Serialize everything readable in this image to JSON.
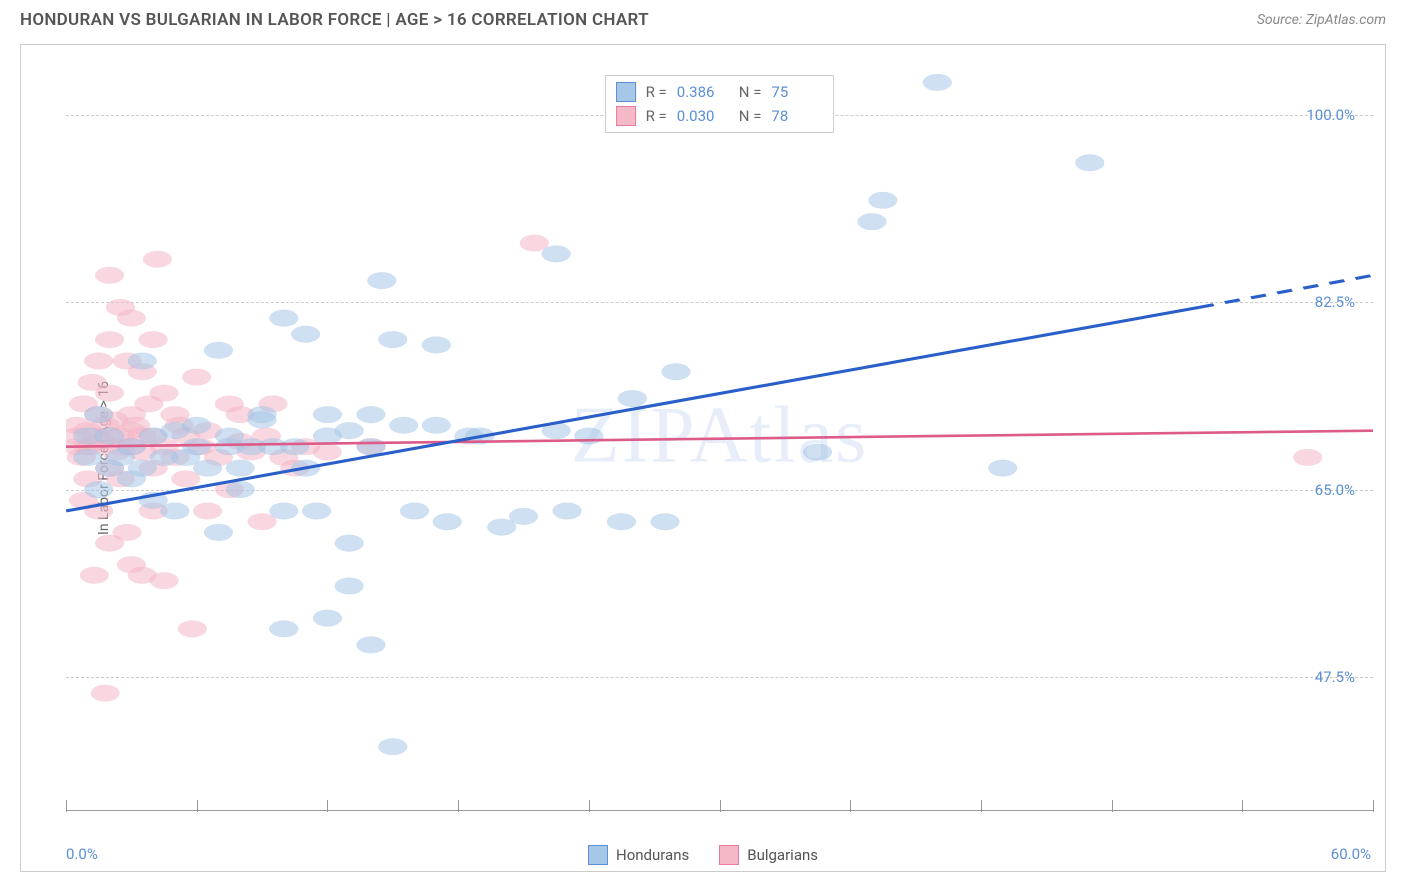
{
  "header": {
    "title": "HONDURAN VS BULGARIAN IN LABOR FORCE | AGE > 16 CORRELATION CHART",
    "source": "Source: ZipAtlas.com"
  },
  "chart": {
    "type": "scatter",
    "y_axis_label": "In Labor Force | Age > 16",
    "x_range": [
      0,
      60
    ],
    "y_range": [
      35,
      105
    ],
    "y_ticks": [
      {
        "value": 47.5,
        "label": "47.5%"
      },
      {
        "value": 65.0,
        "label": "65.0%"
      },
      {
        "value": 82.5,
        "label": "82.5%"
      },
      {
        "value": 100.0,
        "label": "100.0%"
      }
    ],
    "x_tick_positions": [
      0,
      6,
      12,
      18,
      24,
      30,
      36,
      42,
      48,
      54,
      60
    ],
    "x_start_label": "0.0%",
    "x_end_label": "60.0%",
    "grid_color": "#cccccc",
    "background_color": "#ffffff",
    "marker_radius": 8.5,
    "marker_opacity": 0.55,
    "series": [
      {
        "name": "Hondurans",
        "color_fill": "#a7c7e7",
        "color_stroke": "#5b8fd6",
        "r": "0.386",
        "n": "75",
        "trend_line": {
          "x1": 0,
          "y1": 63,
          "x2": 52,
          "y2": 82,
          "x2_dash": 60,
          "y2_dash": 85,
          "stroke": "#2a5fc9",
          "width": 2.5
        },
        "points": [
          [
            1,
            70
          ],
          [
            1,
            68
          ],
          [
            1.5,
            65
          ],
          [
            1.5,
            72
          ],
          [
            2,
            67
          ],
          [
            2,
            70
          ],
          [
            2.5,
            68
          ],
          [
            3,
            69
          ],
          [
            3,
            66
          ],
          [
            3.5,
            77
          ],
          [
            3.5,
            67
          ],
          [
            4,
            70
          ],
          [
            4,
            64
          ],
          [
            4.5,
            68
          ],
          [
            5,
            70.5
          ],
          [
            5,
            63
          ],
          [
            5.5,
            68
          ],
          [
            6,
            69
          ],
          [
            6,
            71
          ],
          [
            6.5,
            67
          ],
          [
            7,
            61
          ],
          [
            7,
            78
          ],
          [
            7.5,
            70
          ],
          [
            7.5,
            69
          ],
          [
            8,
            65
          ],
          [
            8,
            67
          ],
          [
            8.5,
            69
          ],
          [
            9,
            72
          ],
          [
            9,
            71.5
          ],
          [
            9.5,
            69
          ],
          [
            10,
            81
          ],
          [
            10,
            63
          ],
          [
            10,
            52
          ],
          [
            10.5,
            69
          ],
          [
            11,
            79.5
          ],
          [
            11,
            67
          ],
          [
            11.5,
            63
          ],
          [
            12,
            70
          ],
          [
            12,
            72
          ],
          [
            12,
            53
          ],
          [
            13,
            60
          ],
          [
            13,
            70.5
          ],
          [
            13,
            56
          ],
          [
            14,
            72
          ],
          [
            14,
            69
          ],
          [
            14,
            50.5
          ],
          [
            14.5,
            84.5
          ],
          [
            15,
            79
          ],
          [
            15,
            41
          ],
          [
            15.5,
            71
          ],
          [
            16,
            63
          ],
          [
            17,
            78.5
          ],
          [
            17,
            71
          ],
          [
            17.5,
            62
          ],
          [
            18.5,
            70
          ],
          [
            19,
            70
          ],
          [
            20,
            61.5
          ],
          [
            21,
            62.5
          ],
          [
            22.5,
            87
          ],
          [
            22.5,
            70.5
          ],
          [
            23,
            63
          ],
          [
            24,
            70
          ],
          [
            25.5,
            62
          ],
          [
            26,
            73.5
          ],
          [
            27.5,
            62
          ],
          [
            28,
            76
          ],
          [
            34.5,
            68.5
          ],
          [
            37,
            90
          ],
          [
            37.5,
            92
          ],
          [
            40,
            103
          ],
          [
            43,
            67
          ],
          [
            47,
            95.5
          ]
        ]
      },
      {
        "name": "Bulgarians",
        "color_fill": "#f5b8c7",
        "color_stroke": "#e87ba0",
        "r": "0.030",
        "n": "78",
        "trend_line": {
          "x1": 0,
          "y1": 69,
          "x2": 60,
          "y2": 70.5,
          "stroke": "#dd5b88",
          "width": 2
        },
        "points": [
          [
            0.5,
            69
          ],
          [
            0.5,
            70
          ],
          [
            0.5,
            71
          ],
          [
            0.7,
            68
          ],
          [
            0.8,
            73
          ],
          [
            0.8,
            64
          ],
          [
            1,
            69
          ],
          [
            1,
            70.5
          ],
          [
            1,
            66
          ],
          [
            1.2,
            75
          ],
          [
            1.2,
            69
          ],
          [
            1.3,
            57
          ],
          [
            1.4,
            70
          ],
          [
            1.5,
            77
          ],
          [
            1.5,
            72
          ],
          [
            1.5,
            63
          ],
          [
            1.6,
            69.5
          ],
          [
            1.8,
            46
          ],
          [
            1.8,
            71
          ],
          [
            2,
            85
          ],
          [
            2,
            79
          ],
          [
            2,
            74
          ],
          [
            2,
            70
          ],
          [
            2,
            67
          ],
          [
            2,
            60
          ],
          [
            2.2,
            71.5
          ],
          [
            2.3,
            68.5
          ],
          [
            2.5,
            82
          ],
          [
            2.5,
            70
          ],
          [
            2.5,
            69
          ],
          [
            2.5,
            66
          ],
          [
            2.8,
            77
          ],
          [
            2.8,
            61
          ],
          [
            3,
            81
          ],
          [
            3,
            72
          ],
          [
            3,
            70.5
          ],
          [
            3,
            69
          ],
          [
            3,
            58
          ],
          [
            3.2,
            71
          ],
          [
            3.5,
            76
          ],
          [
            3.5,
            70
          ],
          [
            3.5,
            68.5
          ],
          [
            3.5,
            57
          ],
          [
            3.8,
            73
          ],
          [
            4,
            79
          ],
          [
            4,
            70
          ],
          [
            4,
            67
          ],
          [
            4,
            63
          ],
          [
            4.2,
            86.5
          ],
          [
            4.5,
            74
          ],
          [
            4.5,
            69
          ],
          [
            4.5,
            56.5
          ],
          [
            5,
            72
          ],
          [
            5,
            68
          ],
          [
            5.2,
            71
          ],
          [
            5.5,
            70
          ],
          [
            5.5,
            66
          ],
          [
            5.8,
            52
          ],
          [
            6,
            75.5
          ],
          [
            6.2,
            69
          ],
          [
            6.5,
            63
          ],
          [
            6.5,
            70.5
          ],
          [
            7,
            68
          ],
          [
            7.5,
            65
          ],
          [
            7.5,
            73
          ],
          [
            8,
            69.5
          ],
          [
            8,
            72
          ],
          [
            8.5,
            68.5
          ],
          [
            9,
            62
          ],
          [
            9.2,
            70
          ],
          [
            9.5,
            73
          ],
          [
            10,
            68
          ],
          [
            10.5,
            67
          ],
          [
            11,
            69
          ],
          [
            12,
            68.5
          ],
          [
            14,
            69
          ],
          [
            21.5,
            88
          ],
          [
            57,
            68
          ]
        ]
      }
    ],
    "watermark": "ZIPAtlas",
    "legend_bottom": [
      {
        "label": "Hondurans",
        "fill": "#a7c7e7",
        "stroke": "#5b8fd6"
      },
      {
        "label": "Bulgarians",
        "fill": "#f5b8c7",
        "stroke": "#e87ba0"
      }
    ]
  }
}
